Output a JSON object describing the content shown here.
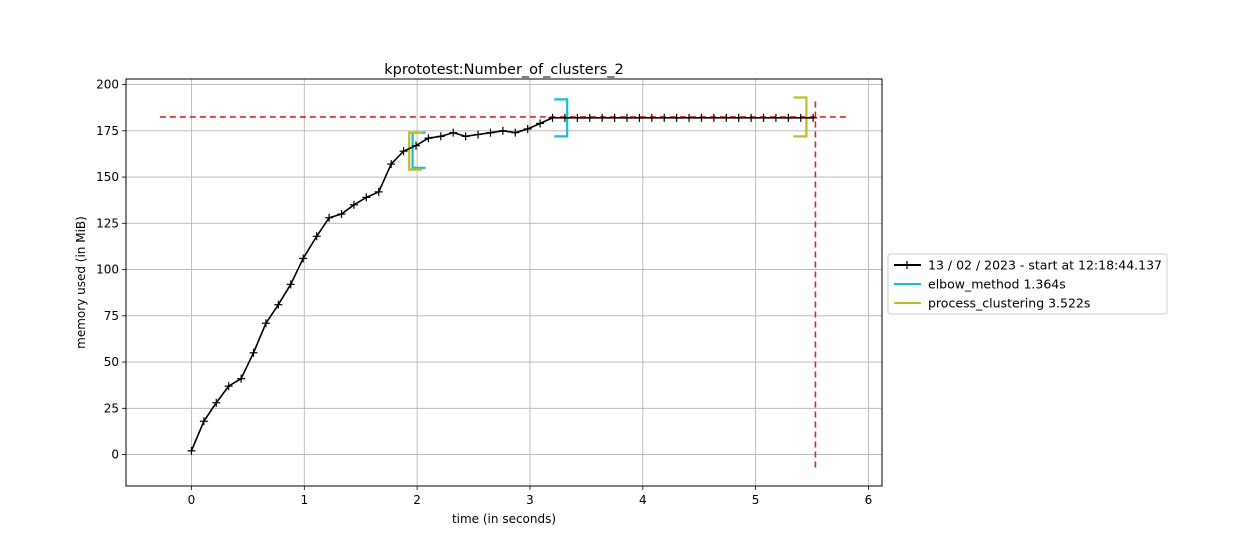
{
  "chart_data": {
    "type": "line",
    "title": "kprototest:Number_of_clusters_2",
    "xlabel": "time (in seconds)",
    "ylabel": "memory used (in MiB)",
    "xlim": [
      -0.58,
      6.12
    ],
    "ylim": [
      -17,
      203
    ],
    "xticks": [
      0,
      1,
      2,
      3,
      4,
      5,
      6
    ],
    "yticks": [
      0,
      25,
      50,
      75,
      100,
      125,
      150,
      175,
      200
    ],
    "grid": true,
    "legend_position": "right-outside",
    "series": [
      {
        "name": "13 / 02 / 2023 - start at 12:18:44.137",
        "color": "#000000",
        "marker": "+",
        "x": [
          0.0,
          0.11,
          0.22,
          0.33,
          0.44,
          0.55,
          0.66,
          0.77,
          0.88,
          0.99,
          1.11,
          1.22,
          1.33,
          1.44,
          1.55,
          1.66,
          1.77,
          1.88,
          1.99,
          2.1,
          2.21,
          2.32,
          2.43,
          2.54,
          2.65,
          2.76,
          2.87,
          2.98,
          3.09,
          3.2,
          3.31,
          3.42,
          3.53,
          3.64,
          3.75,
          3.86,
          3.97,
          4.08,
          4.19,
          4.3,
          4.41,
          4.52,
          4.63,
          4.74,
          4.85,
          4.96,
          5.07,
          5.18,
          5.29,
          5.4,
          5.51
        ],
        "values": [
          2,
          18,
          28,
          37,
          41,
          55,
          71,
          81,
          92,
          106,
          118,
          128,
          130,
          135,
          139,
          142,
          157,
          164,
          167,
          171,
          172,
          174,
          172,
          173,
          174,
          175,
          174,
          176,
          179,
          182,
          182,
          182,
          182,
          182,
          182,
          182,
          182,
          182,
          182,
          182,
          182,
          182,
          182,
          182,
          182,
          182,
          182,
          182,
          182,
          182,
          182
        ]
      },
      {
        "name": "elbow_method 1.364s",
        "color": "#17becf",
        "type": "bracket",
        "x_start": 1.96,
        "x_end": 3.33,
        "y_start": [
          155,
          174
        ],
        "y_end": [
          172,
          192
        ]
      },
      {
        "name": "process_clustering 3.522s",
        "color": "#bcbd22",
        "type": "bracket",
        "x_start": 1.93,
        "x_end": 5.45,
        "y_start": [
          154,
          174
        ],
        "y_end": [
          172,
          193
        ]
      }
    ],
    "reference_lines": {
      "color": "#d62728",
      "hline_y": 182.5,
      "hline_x_range": [
        -0.28,
        5.82
      ],
      "vline_x": 5.53,
      "vline_y_range": [
        -7,
        191
      ]
    }
  }
}
